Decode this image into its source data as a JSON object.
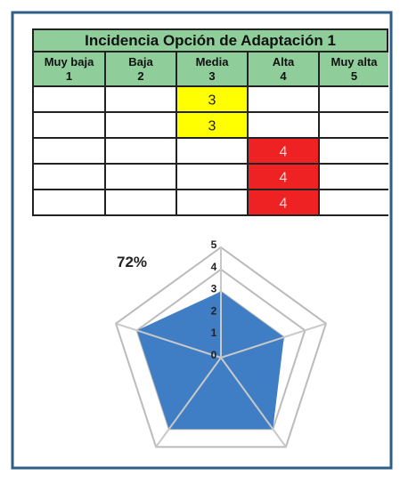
{
  "table": {
    "title": "Incidencia Opción de Adaptación 1",
    "headers": [
      {
        "label": "Muy baja",
        "level": "1"
      },
      {
        "label": "Baja",
        "level": "2"
      },
      {
        "label": "Media",
        "level": "3"
      },
      {
        "label": "Alta",
        "level": "4"
      },
      {
        "label": "Muy alta",
        "level": "5"
      }
    ],
    "column_colors": [
      null,
      null,
      "#ffff00",
      "#ee2222",
      null
    ],
    "rows": [
      [
        null,
        null,
        3,
        null,
        null
      ],
      [
        null,
        null,
        3,
        null,
        null
      ],
      [
        null,
        null,
        null,
        4,
        null
      ],
      [
        null,
        null,
        null,
        4,
        null
      ],
      [
        null,
        null,
        null,
        4,
        null
      ]
    ]
  },
  "summary": "72%",
  "chart_data": {
    "type": "radar",
    "values": [
      3,
      3,
      4,
      4,
      4
    ],
    "color": "#3f7ec4",
    "ylim": [
      0,
      5
    ],
    "yticks": [
      0,
      1,
      2,
      3,
      4,
      5
    ],
    "grid": true
  }
}
